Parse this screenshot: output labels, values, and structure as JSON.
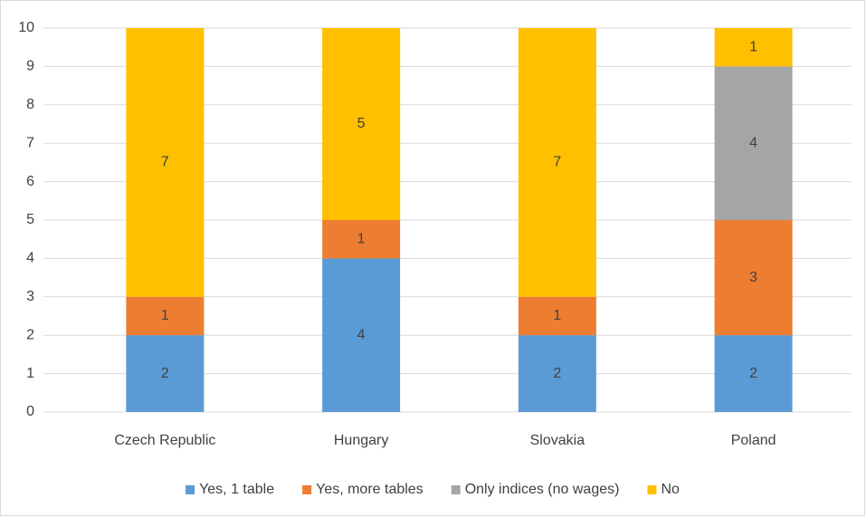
{
  "chart_data": {
    "type": "bar",
    "stacked": true,
    "categories": [
      "Czech Republic",
      "Hungary",
      "Slovakia",
      "Poland"
    ],
    "series": [
      {
        "name": "Yes, 1 table",
        "color": "#5b9bd5",
        "values": [
          2,
          4,
          2,
          2
        ]
      },
      {
        "name": "Yes, more tables",
        "color": "#ed7d31",
        "values": [
          1,
          1,
          1,
          3
        ]
      },
      {
        "name": "Only indices (no wages)",
        "color": "#a5a5a5",
        "values": [
          null,
          null,
          null,
          4
        ]
      },
      {
        "name": "No",
        "color": "#ffc000",
        "values": [
          7,
          5,
          7,
          1
        ]
      }
    ],
    "ylim": [
      0,
      10
    ],
    "yticks": [
      0,
      1,
      2,
      3,
      4,
      5,
      6,
      7,
      8,
      9,
      10
    ],
    "grid": true,
    "legend": "bottom"
  }
}
